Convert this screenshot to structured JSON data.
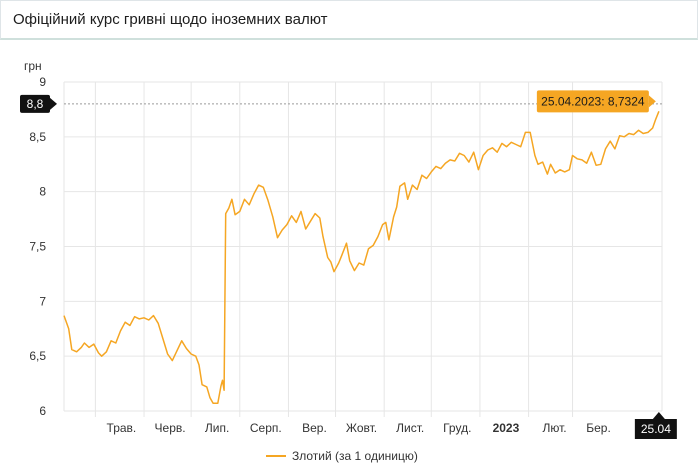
{
  "page": {
    "title": "Офіційний курс гривні щодо іноземних валют"
  },
  "colors": {
    "series": "#f5a623",
    "tooltip_bg": "#f5a623",
    "marker_bg": "#111111",
    "grid": "#e6e6e6"
  },
  "chart_data": {
    "type": "line",
    "ylabel": "грн",
    "ylim": [
      6,
      9
    ],
    "y_ticks": [
      "6",
      "6,5",
      "7",
      "7,5",
      "8",
      "8,5",
      "9"
    ],
    "x_ticks": [
      {
        "label": "Трав.",
        "date": "2022-05-01",
        "bold": false
      },
      {
        "label": "Черв.",
        "date": "2022-06-01",
        "bold": false
      },
      {
        "label": "Лип.",
        "date": "2022-07-01",
        "bold": false
      },
      {
        "label": "Серп.",
        "date": "2022-08-01",
        "bold": false
      },
      {
        "label": "Вер.",
        "date": "2022-09-01",
        "bold": false
      },
      {
        "label": "Жовт.",
        "date": "2022-10-01",
        "bold": false
      },
      {
        "label": "Лист.",
        "date": "2022-11-01",
        "bold": false
      },
      {
        "label": "Груд.",
        "date": "2022-12-01",
        "bold": false
      },
      {
        "label": "2023",
        "date": "2023-01-01",
        "bold": true
      },
      {
        "label": "Лют.",
        "date": "2023-02-01",
        "bold": false
      },
      {
        "label": "Бер.",
        "date": "2023-03-01",
        "bold": false
      }
    ],
    "x_range": [
      "2022-04-11",
      "2023-04-27"
    ],
    "series": [
      {
        "name": "Злотий (за 1 одиницю)",
        "points": [
          [
            "2022-04-11",
            6.87
          ],
          [
            "2022-04-14",
            6.75
          ],
          [
            "2022-04-16",
            6.56
          ],
          [
            "2022-04-19",
            6.54
          ],
          [
            "2022-04-22",
            6.58
          ],
          [
            "2022-04-24",
            6.62
          ],
          [
            "2022-04-27",
            6.58
          ],
          [
            "2022-04-30",
            6.61
          ],
          [
            "2022-05-03",
            6.53
          ],
          [
            "2022-05-05",
            6.5
          ],
          [
            "2022-05-08",
            6.54
          ],
          [
            "2022-05-11",
            6.64
          ],
          [
            "2022-05-14",
            6.62
          ],
          [
            "2022-05-17",
            6.73
          ],
          [
            "2022-05-20",
            6.81
          ],
          [
            "2022-05-23",
            6.78
          ],
          [
            "2022-05-26",
            6.86
          ],
          [
            "2022-05-29",
            6.84
          ],
          [
            "2022-06-01",
            6.85
          ],
          [
            "2022-06-04",
            6.83
          ],
          [
            "2022-06-07",
            6.87
          ],
          [
            "2022-06-10",
            6.8
          ],
          [
            "2022-06-13",
            6.66
          ],
          [
            "2022-06-16",
            6.52
          ],
          [
            "2022-06-19",
            6.46
          ],
          [
            "2022-06-22",
            6.55
          ],
          [
            "2022-06-25",
            6.64
          ],
          [
            "2022-06-28",
            6.57
          ],
          [
            "2022-07-01",
            6.52
          ],
          [
            "2022-07-04",
            6.5
          ],
          [
            "2022-07-06",
            6.42
          ],
          [
            "2022-07-08",
            6.24
          ],
          [
            "2022-07-11",
            6.22
          ],
          [
            "2022-07-13",
            6.12
          ],
          [
            "2022-07-15",
            6.07
          ],
          [
            "2022-07-18",
            6.07
          ],
          [
            "2022-07-20",
            6.23
          ],
          [
            "2022-07-21",
            6.28
          ],
          [
            "2022-07-22",
            6.19
          ],
          [
            "2022-07-23",
            7.8
          ],
          [
            "2022-07-25",
            7.85
          ],
          [
            "2022-07-27",
            7.93
          ],
          [
            "2022-07-29",
            7.79
          ],
          [
            "2022-08-01",
            7.82
          ],
          [
            "2022-08-04",
            7.93
          ],
          [
            "2022-08-07",
            7.88
          ],
          [
            "2022-08-10",
            7.98
          ],
          [
            "2022-08-13",
            8.06
          ],
          [
            "2022-08-16",
            8.04
          ],
          [
            "2022-08-19",
            7.92
          ],
          [
            "2022-08-22",
            7.77
          ],
          [
            "2022-08-25",
            7.58
          ],
          [
            "2022-08-28",
            7.65
          ],
          [
            "2022-08-31",
            7.7
          ],
          [
            "2022-09-03",
            7.78
          ],
          [
            "2022-09-06",
            7.72
          ],
          [
            "2022-09-09",
            7.82
          ],
          [
            "2022-09-12",
            7.66
          ],
          [
            "2022-09-15",
            7.73
          ],
          [
            "2022-09-18",
            7.8
          ],
          [
            "2022-09-21",
            7.76
          ],
          [
            "2022-09-23",
            7.59
          ],
          [
            "2022-09-26",
            7.4
          ],
          [
            "2022-09-28",
            7.36
          ],
          [
            "2022-09-30",
            7.27
          ],
          [
            "2022-10-03",
            7.35
          ],
          [
            "2022-10-05",
            7.42
          ],
          [
            "2022-10-08",
            7.53
          ],
          [
            "2022-10-10",
            7.37
          ],
          [
            "2022-10-13",
            7.28
          ],
          [
            "2022-10-16",
            7.35
          ],
          [
            "2022-10-19",
            7.33
          ],
          [
            "2022-10-22",
            7.48
          ],
          [
            "2022-10-25",
            7.51
          ],
          [
            "2022-10-28",
            7.59
          ],
          [
            "2022-10-31",
            7.7
          ],
          [
            "2022-11-02",
            7.72
          ],
          [
            "2022-11-04",
            7.56
          ],
          [
            "2022-11-07",
            7.77
          ],
          [
            "2022-11-09",
            7.86
          ],
          [
            "2022-11-11",
            8.05
          ],
          [
            "2022-11-14",
            8.08
          ],
          [
            "2022-11-16",
            7.93
          ],
          [
            "2022-11-19",
            8.06
          ],
          [
            "2022-11-22",
            8.02
          ],
          [
            "2022-11-25",
            8.15
          ],
          [
            "2022-11-28",
            8.12
          ],
          [
            "2022-12-01",
            8.18
          ],
          [
            "2022-12-04",
            8.23
          ],
          [
            "2022-12-07",
            8.21
          ],
          [
            "2022-12-10",
            8.26
          ],
          [
            "2022-12-13",
            8.29
          ],
          [
            "2022-12-16",
            8.28
          ],
          [
            "2022-12-19",
            8.35
          ],
          [
            "2022-12-22",
            8.33
          ],
          [
            "2022-12-25",
            8.27
          ],
          [
            "2022-12-28",
            8.36
          ],
          [
            "2022-12-31",
            8.2
          ],
          [
            "2023-01-03",
            8.33
          ],
          [
            "2023-01-06",
            8.38
          ],
          [
            "2023-01-09",
            8.4
          ],
          [
            "2023-01-12",
            8.36
          ],
          [
            "2023-01-15",
            8.44
          ],
          [
            "2023-01-18",
            8.41
          ],
          [
            "2023-01-21",
            8.45
          ],
          [
            "2023-01-24",
            8.43
          ],
          [
            "2023-01-27",
            8.41
          ],
          [
            "2023-01-30",
            8.54
          ],
          [
            "2023-02-02",
            8.54
          ],
          [
            "2023-02-05",
            8.33
          ],
          [
            "2023-02-07",
            8.25
          ],
          [
            "2023-02-10",
            8.27
          ],
          [
            "2023-02-13",
            8.16
          ],
          [
            "2023-02-15",
            8.25
          ],
          [
            "2023-02-18",
            8.17
          ],
          [
            "2023-02-21",
            8.2
          ],
          [
            "2023-02-24",
            8.18
          ],
          [
            "2023-02-27",
            8.2
          ],
          [
            "2023-03-01",
            8.33
          ],
          [
            "2023-03-04",
            8.3
          ],
          [
            "2023-03-07",
            8.29
          ],
          [
            "2023-03-10",
            8.26
          ],
          [
            "2023-03-13",
            8.36
          ],
          [
            "2023-03-16",
            8.24
          ],
          [
            "2023-03-19",
            8.25
          ],
          [
            "2023-03-22",
            8.39
          ],
          [
            "2023-03-25",
            8.46
          ],
          [
            "2023-03-28",
            8.39
          ],
          [
            "2023-03-31",
            8.51
          ],
          [
            "2023-04-03",
            8.5
          ],
          [
            "2023-04-06",
            8.53
          ],
          [
            "2023-04-09",
            8.52
          ],
          [
            "2023-04-12",
            8.56
          ],
          [
            "2023-04-15",
            8.53
          ],
          [
            "2023-04-18",
            8.54
          ],
          [
            "2023-04-21",
            8.58
          ],
          [
            "2023-04-23",
            8.66
          ],
          [
            "2023-04-25",
            8.7324
          ]
        ]
      }
    ],
    "reference_line": {
      "value": 8.8,
      "label": "8,8"
    },
    "tooltip": {
      "text": "25.04.2023: 8,7324",
      "date": "2023-04-25",
      "value": 8.7324
    },
    "x_marker": {
      "label": "25.04",
      "date": "2023-04-25"
    },
    "legend": {
      "label": "Злотий (за 1 одиницю)",
      "placement": "bottom-center"
    },
    "grid": true
  }
}
